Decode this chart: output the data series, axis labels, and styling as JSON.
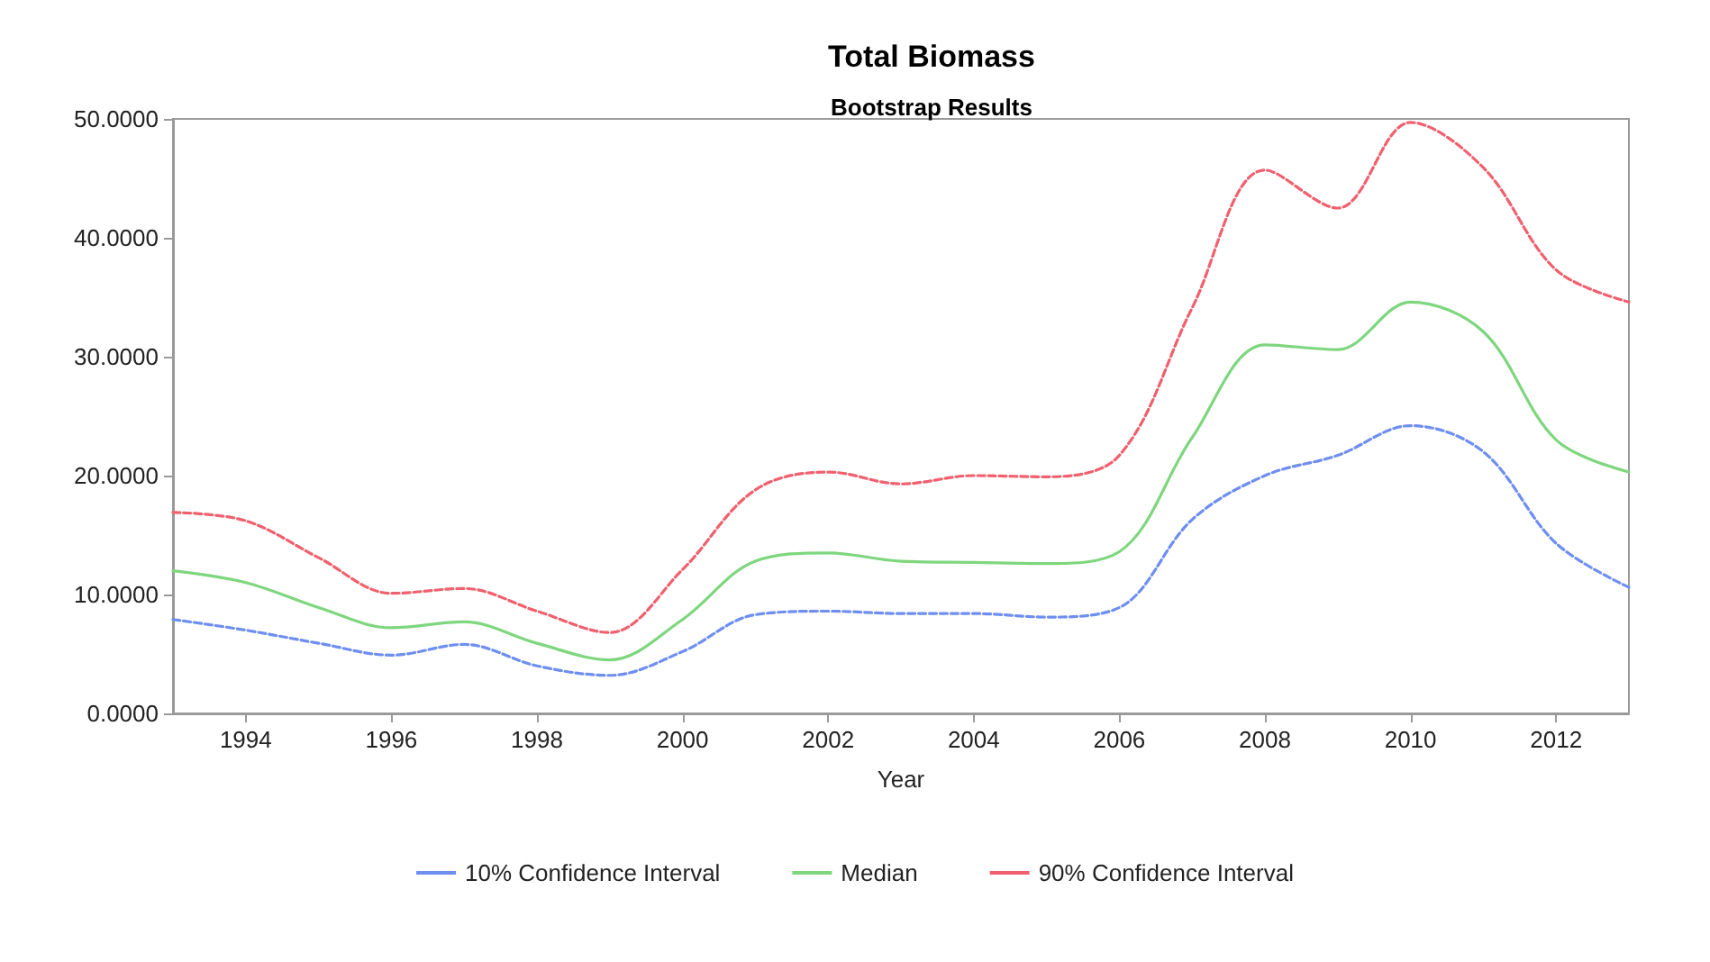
{
  "chart_data": {
    "type": "line",
    "title": "Total Biomass",
    "subtitle": "Bootstrap Results",
    "xlabel": "Year",
    "x": [
      1993,
      1994,
      1995,
      1996,
      1997,
      1998,
      1999,
      2000,
      2001,
      2002,
      2003,
      2004,
      2005,
      2006,
      2007,
      2008,
      2009,
      2010,
      2011,
      2012,
      2013
    ],
    "series": [
      {
        "name": "10% Confidence Interval",
        "color": "#6e8ef0",
        "line_style": "dashed",
        "values": [
          7.9,
          7.0,
          5.9,
          4.9,
          5.8,
          4.0,
          3.2,
          5.2,
          8.3,
          8.6,
          8.4,
          8.4,
          8.1,
          8.9,
          16.3,
          20.0,
          21.7,
          24.2,
          22.0,
          14.3,
          10.6
        ]
      },
      {
        "name": "Median",
        "color": "#7ed67e",
        "line_style": "solid",
        "values": [
          12.0,
          11.0,
          8.9,
          7.2,
          7.7,
          5.9,
          4.5,
          7.9,
          12.8,
          13.5,
          12.8,
          12.7,
          12.6,
          13.6,
          23.2,
          31.0,
          30.6,
          34.6,
          32.1,
          23.0,
          20.3
        ]
      },
      {
        "name": "90% Confidence Interval",
        "color": "#f0606e",
        "line_style": "dashed",
        "values": [
          16.9,
          16.2,
          13.1,
          10.1,
          10.5,
          8.6,
          6.8,
          12.1,
          18.8,
          20.3,
          19.3,
          20.0,
          19.9,
          21.7,
          34.1,
          45.7,
          42.5,
          49.7,
          45.9,
          37.3,
          34.6
        ]
      }
    ],
    "xlim": [
      1993,
      2013
    ],
    "xticks": [
      1994,
      1996,
      1998,
      2000,
      2002,
      2004,
      2006,
      2008,
      2010,
      2012
    ],
    "ylim": [
      0,
      50
    ],
    "yticks": [
      {
        "value": 0,
        "label": "0.0000"
      },
      {
        "value": 10,
        "label": "10.0000"
      },
      {
        "value": 20,
        "label": "20.0000"
      },
      {
        "value": 30,
        "label": "30.0000"
      },
      {
        "value": 40,
        "label": "40.0000"
      },
      {
        "value": 50,
        "label": "50.0000"
      }
    ],
    "grid": false,
    "legend": "bottom",
    "marker": "none"
  }
}
